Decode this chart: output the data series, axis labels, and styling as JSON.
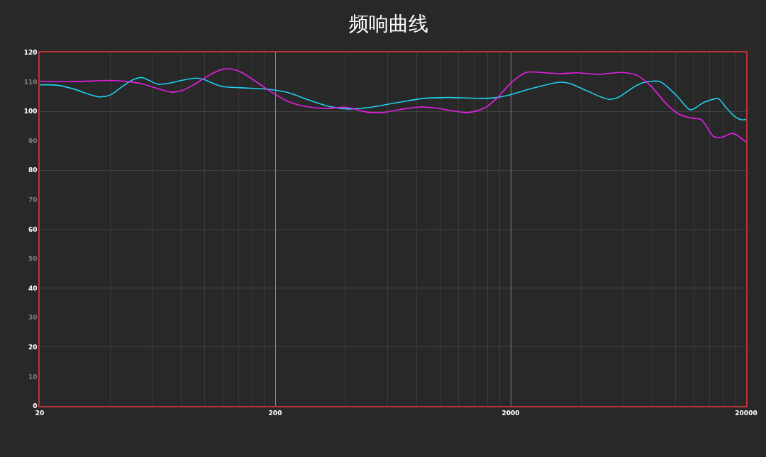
{
  "chart_data": {
    "type": "line",
    "title": "频响曲线",
    "log": "x",
    "xlim": [
      20,
      20000
    ],
    "xticks": [
      20,
      {
        "value": 40,
        "label": null
      },
      {
        "value": 60,
        "label": null
      },
      {
        "value": 80,
        "label": null
      },
      {
        "value": 100,
        "label": null
      },
      {
        "value": 120,
        "label": null
      },
      {
        "value": 140,
        "label": null
      },
      {
        "value": 160,
        "label": null
      },
      {
        "value": 180,
        "label": null
      },
      200,
      {
        "value": 400,
        "label": null
      },
      {
        "value": 600,
        "label": null
      },
      {
        "value": 800,
        "label": null
      },
      {
        "value": 1000,
        "label": null
      },
      {
        "value": 1200,
        "label": null
      },
      {
        "value": 1400,
        "label": null
      },
      {
        "value": 1600,
        "label": null
      },
      {
        "value": 1800,
        "label": null
      },
      2000,
      {
        "value": 4000,
        "label": null
      },
      {
        "value": 6000,
        "label": null
      },
      {
        "value": 8000,
        "label": null
      },
      {
        "value": 10000,
        "label": null
      },
      {
        "value": 12000,
        "label": null
      },
      {
        "value": 14000,
        "label": null
      },
      {
        "value": 16000,
        "label": null
      },
      {
        "value": 18000,
        "label": null
      },
      20000
    ],
    "ylim": [
      0,
      120
    ],
    "yticks": [
      0,
      10,
      20,
      30,
      40,
      50,
      60,
      70,
      80,
      90,
      100,
      110,
      120
    ],
    "grid": true,
    "series": [
      {
        "color": "#1fcfee",
        "x": [
          20,
          23.6,
          28.4,
          31.8,
          36.2,
          40,
          45,
          49.4,
          54.1,
          58.3,
          63.6,
          71.4,
          80,
          92,
          98.9,
          110.6,
          120,
          142.6,
          179.5,
          200,
          226,
          284,
          342,
          411,
          472,
          530,
          673,
          853,
          1084,
          1549,
          1745,
          2008,
          2492,
          3236,
          3563,
          4209,
          5214,
          5737,
          6623,
          7285,
          8604,
          10170,
          11590,
          13210,
          15220,
          16360,
          17990,
          19320,
          20000
        ],
        "values": [
          109.0,
          108.9,
          107.4,
          106.0,
          104.9,
          105.6,
          108.5,
          110.6,
          111.5,
          110.5,
          109.2,
          109.6,
          110.5,
          111.3,
          110.9,
          109.3,
          108.4,
          108.0,
          107.6,
          107.2,
          106.4,
          103.6,
          101.6,
          100.8,
          101.1,
          101.6,
          103.1,
          104.4,
          104.7,
          104.4,
          104.7,
          105.7,
          107.9,
          109.9,
          109.5,
          107.0,
          104.1,
          104.8,
          108.1,
          109.7,
          110.1,
          105.2,
          100.5,
          103.0,
          104.3,
          101.5,
          98.1,
          97.1,
          97.3
        ]
      },
      {
        "color": "#e81ee8",
        "x": [
          20,
          28.4,
          40,
          47.2,
          54.1,
          60.6,
          73,
          80,
          89.7,
          103.9,
          118.4,
          129.2,
          142.6,
          159.4,
          179.5,
          200,
          226,
          271.7,
          326.8,
          394,
          430.7,
          494.5,
          568,
          673,
          834,
          985,
          1311,
          1549,
          1745,
          2008,
          2323,
          2808,
          3236,
          3813,
          4712,
          6015,
          6936,
          7811,
          9232,
          10390,
          11730,
          12900,
          14520,
          15600,
          17580,
          20000
        ],
        "values": [
          110.2,
          110.1,
          110.5,
          110.1,
          109.4,
          108.2,
          106.5,
          107.0,
          108.9,
          112.1,
          114.2,
          114.4,
          113.4,
          111.0,
          108.2,
          105.8,
          103.4,
          101.6,
          101.0,
          101.4,
          100.9,
          99.7,
          99.6,
          100.6,
          101.5,
          101.0,
          99.6,
          101.1,
          104.4,
          109.7,
          113.2,
          113.1,
          112.8,
          113.1,
          112.6,
          113.2,
          112.1,
          108.9,
          102.3,
          99.0,
          97.7,
          97.2,
          91.5,
          91.1,
          92.5,
          89.5
        ]
      }
    ]
  }
}
